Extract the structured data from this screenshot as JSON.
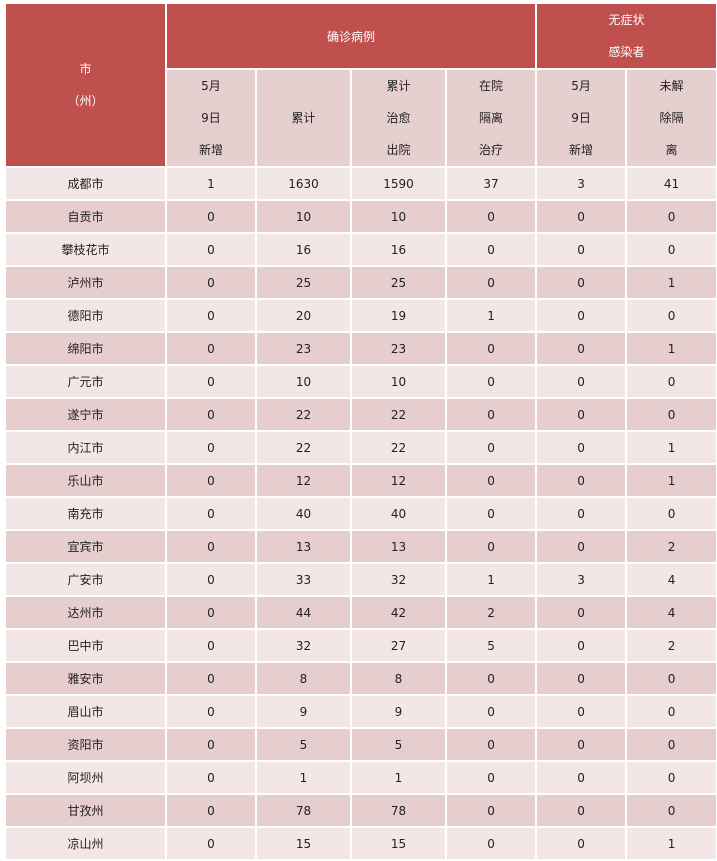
{
  "header": {
    "city_label": [
      "市",
      "（州）"
    ],
    "confirmed_group": "确诊病例",
    "asymptomatic_group": [
      "无症状",
      "感染者"
    ],
    "columns": [
      [
        "5月",
        "9日",
        "新增"
      ],
      [
        "累计"
      ],
      [
        "累计",
        "治愈",
        "出院"
      ],
      [
        "在院",
        "隔离",
        "治疗"
      ],
      [
        "5月",
        "9日",
        "新增"
      ],
      [
        "未解",
        "除隔",
        "离"
      ]
    ]
  },
  "rows": [
    [
      "成都市",
      "1",
      "1630",
      "1590",
      "37",
      "3",
      "41"
    ],
    [
      "自贡市",
      "0",
      "10",
      "10",
      "0",
      "0",
      "0"
    ],
    [
      "攀枝花市",
      "0",
      "16",
      "16",
      "0",
      "0",
      "0"
    ],
    [
      "泸州市",
      "0",
      "25",
      "25",
      "0",
      "0",
      "1"
    ],
    [
      "德阳市",
      "0",
      "20",
      "19",
      "1",
      "0",
      "0"
    ],
    [
      "绵阳市",
      "0",
      "23",
      "23",
      "0",
      "0",
      "1"
    ],
    [
      "广元市",
      "0",
      "10",
      "10",
      "0",
      "0",
      "0"
    ],
    [
      "遂宁市",
      "0",
      "22",
      "22",
      "0",
      "0",
      "0"
    ],
    [
      "内江市",
      "0",
      "22",
      "22",
      "0",
      "0",
      "1"
    ],
    [
      "乐山市",
      "0",
      "12",
      "12",
      "0",
      "0",
      "1"
    ],
    [
      "南充市",
      "0",
      "40",
      "40",
      "0",
      "0",
      "0"
    ],
    [
      "宜宾市",
      "0",
      "13",
      "13",
      "0",
      "0",
      "2"
    ],
    [
      "广安市",
      "0",
      "33",
      "32",
      "1",
      "3",
      "4"
    ],
    [
      "达州市",
      "0",
      "44",
      "42",
      "2",
      "0",
      "4"
    ],
    [
      "巴中市",
      "0",
      "32",
      "27",
      "5",
      "0",
      "2"
    ],
    [
      "雅安市",
      "0",
      "8",
      "8",
      "0",
      "0",
      "0"
    ],
    [
      "眉山市",
      "0",
      "9",
      "9",
      "0",
      "0",
      "0"
    ],
    [
      "资阳市",
      "0",
      "5",
      "5",
      "0",
      "0",
      "0"
    ],
    [
      "阿坝州",
      "0",
      "1",
      "1",
      "0",
      "0",
      "0"
    ],
    [
      "甘孜州",
      "0",
      "78",
      "78",
      "0",
      "0",
      "0"
    ],
    [
      "凉山州",
      "0",
      "15",
      "15",
      "0",
      "0",
      "1"
    ]
  ],
  "colors": {
    "header": "#C0504D",
    "subheader": "#E6CFCF",
    "row_light": "#F2E7E6",
    "row_dark": "#E6CECE"
  }
}
